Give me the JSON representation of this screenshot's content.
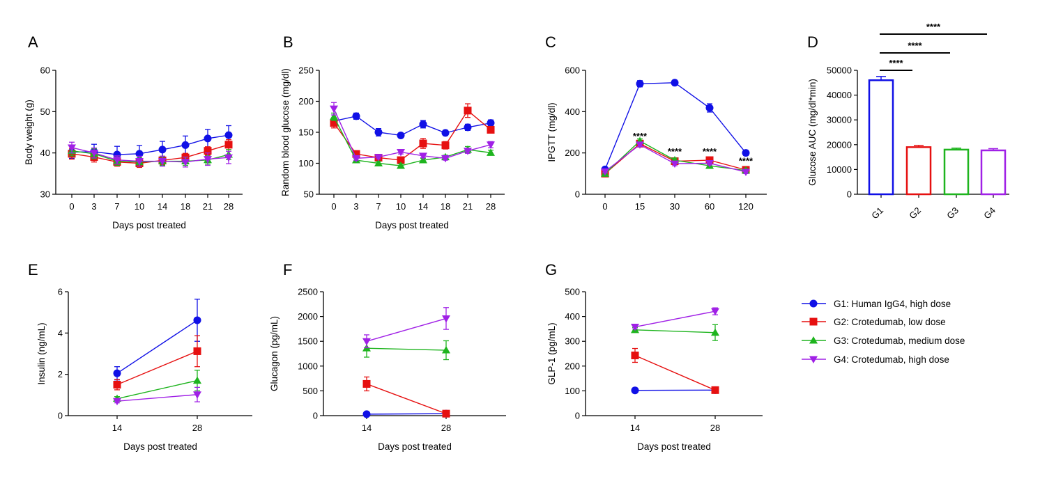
{
  "colors": {
    "G1": "#1010e6",
    "G2": "#e61010",
    "G3": "#1eb41e",
    "G4": "#a020e6"
  },
  "legend": [
    {
      "id": "G1",
      "label": "G1: Human IgG4, high dose",
      "marker": "circle"
    },
    {
      "id": "G2",
      "label": "G2: Crotedumab, low dose",
      "marker": "square"
    },
    {
      "id": "G3",
      "label": "G3: Crotedumab, medium dose",
      "marker": "triangle"
    },
    {
      "id": "G4",
      "label": "G4: Crotedumab, high dose",
      "marker": "triangle-down"
    }
  ],
  "chart_data": [
    {
      "panel": "A",
      "type": "line",
      "xlabel": "Days post treated",
      "ylabel": "Body weight (g)",
      "categories": [
        "0",
        "3",
        "7",
        "10",
        "14",
        "18",
        "21",
        "28"
      ],
      "ylim": [
        30,
        60
      ],
      "yticks": [
        30,
        40,
        50,
        60
      ],
      "series": [
        {
          "id": "G1",
          "values": [
            40.2,
            40.3,
            39.6,
            39.8,
            40.8,
            41.9,
            43.5,
            44.3
          ],
          "err": [
            1.5,
            1.8,
            2.0,
            2.0,
            2.0,
            2.2,
            2.2,
            2.3
          ]
        },
        {
          "id": "G2",
          "values": [
            39.8,
            39.0,
            37.8,
            37.5,
            38.2,
            38.9,
            40.5,
            42.0
          ],
          "err": [
            1.3,
            1.2,
            1.0,
            1.0,
            1.0,
            1.0,
            1.0,
            1.2
          ]
        },
        {
          "id": "G3",
          "values": [
            40.5,
            39.8,
            38.0,
            37.8,
            38.0,
            38.0,
            38.3,
            39.6
          ],
          "err": [
            1.2,
            1.2,
            1.0,
            1.0,
            1.0,
            1.0,
            1.0,
            1.2
          ]
        },
        {
          "id": "G4",
          "values": [
            41.3,
            40.0,
            38.3,
            38.0,
            38.0,
            37.8,
            38.5,
            38.9
          ],
          "err": [
            1.3,
            1.2,
            1.0,
            1.2,
            1.2,
            1.2,
            1.5,
            1.5
          ]
        }
      ]
    },
    {
      "panel": "B",
      "type": "line",
      "xlabel": "Days post treated",
      "ylabel": "Random blood glucose (mg/dl)",
      "categories": [
        "0",
        "3",
        "7",
        "10",
        "14",
        "18",
        "21",
        "28"
      ],
      "ylim": [
        50,
        250
      ],
      "yticks": [
        50,
        100,
        150,
        200,
        250
      ],
      "series": [
        {
          "id": "G1",
          "values": [
            168,
            176,
            150,
            145,
            163,
            149,
            158,
            165
          ],
          "err": [
            5,
            5,
            6,
            3,
            6,
            4,
            5,
            5
          ]
        },
        {
          "id": "G2",
          "values": [
            165,
            115,
            109,
            105,
            132,
            129,
            185,
            154
          ],
          "err": [
            8,
            3,
            3,
            4,
            8,
            6,
            11,
            5
          ]
        },
        {
          "id": "G3",
          "values": [
            175,
            105,
            100,
            96,
            105,
            110,
            122,
            117
          ],
          "err": [
            6,
            3,
            3,
            3,
            3,
            3,
            5,
            4
          ]
        },
        {
          "id": "G4",
          "values": [
            188,
            108,
            110,
            118,
            112,
            108,
            120,
            130
          ],
          "err": [
            10,
            3,
            3,
            3,
            3,
            3,
            4,
            5
          ]
        }
      ]
    },
    {
      "panel": "C",
      "type": "line",
      "xlabel": "",
      "ylabel": "IPGTT (mg/dl)",
      "categories": [
        "0",
        "15",
        "30",
        "60",
        "120"
      ],
      "ylim": [
        0,
        600
      ],
      "yticks": [
        0,
        200,
        400,
        600
      ],
      "annotations": [
        {
          "x": "15",
          "y": 270,
          "text": "****"
        },
        {
          "x": "30",
          "y": 195,
          "text": "****"
        },
        {
          "x": "60",
          "y": 195,
          "text": "****"
        },
        {
          "x": "120",
          "y": 150,
          "text": "****"
        }
      ],
      "series": [
        {
          "id": "G1",
          "values": [
            120,
            535,
            540,
            418,
            200
          ],
          "err": [
            8,
            15,
            10,
            20,
            12
          ]
        },
        {
          "id": "G2",
          "values": [
            100,
            245,
            160,
            165,
            118
          ],
          "err": [
            6,
            10,
            12,
            8,
            8
          ]
        },
        {
          "id": "G3",
          "values": [
            100,
            258,
            165,
            138,
            115
          ],
          "err": [
            6,
            10,
            10,
            8,
            8
          ]
        },
        {
          "id": "G4",
          "values": [
            110,
            240,
            148,
            150,
            108
          ],
          "err": [
            6,
            10,
            10,
            8,
            8
          ]
        }
      ]
    },
    {
      "panel": "D",
      "type": "bar",
      "xlabel": "",
      "ylabel": "Glucose AUC (mg/dl*min)",
      "categories": [
        "G1",
        "G2",
        "G3",
        "G4"
      ],
      "ylim": [
        0,
        50000
      ],
      "yticks": [
        0,
        10000,
        20000,
        30000,
        40000,
        50000
      ],
      "values": [
        46000,
        19000,
        18000,
        17700
      ],
      "err": [
        1500,
        700,
        600,
        700
      ],
      "significance": [
        {
          "from": "G1",
          "to": "G2",
          "text": "****"
        },
        {
          "from": "G1",
          "to": "G3",
          "text": "****"
        },
        {
          "from": "G1",
          "to": "G4",
          "text": "****"
        }
      ]
    },
    {
      "panel": "E",
      "type": "line",
      "xlabel": "Days post treated",
      "ylabel": "Insulin (ng/mL)",
      "categories": [
        "14",
        "28"
      ],
      "ylim": [
        0,
        6
      ],
      "yticks": [
        0,
        2,
        4,
        6
      ],
      "series": [
        {
          "id": "G1",
          "values": [
            2.05,
            4.62
          ],
          "err": [
            0.32,
            1.02
          ]
        },
        {
          "id": "G2",
          "values": [
            1.5,
            3.12
          ],
          "err": [
            0.25,
            0.75
          ]
        },
        {
          "id": "G3",
          "values": [
            0.82,
            1.7
          ],
          "err": [
            0.1,
            0.5
          ]
        },
        {
          "id": "G4",
          "values": [
            0.7,
            1.02
          ],
          "err": [
            0.08,
            0.35
          ]
        }
      ]
    },
    {
      "panel": "F",
      "type": "line",
      "xlabel": "Days post treated",
      "ylabel": "Glucagon (pg/mL)",
      "categories": [
        "14",
        "28"
      ],
      "ylim": [
        0,
        2500
      ],
      "yticks": [
        0,
        500,
        1000,
        1500,
        2000,
        2500
      ],
      "series": [
        {
          "id": "G1",
          "values": [
            30,
            40
          ],
          "err": [
            10,
            10
          ]
        },
        {
          "id": "G2",
          "values": [
            640,
            40
          ],
          "err": [
            140,
            20
          ]
        },
        {
          "id": "G3",
          "values": [
            1360,
            1320
          ],
          "err": [
            180,
            190
          ]
        },
        {
          "id": "G4",
          "values": [
            1500,
            1960
          ],
          "err": [
            130,
            220
          ]
        }
      ]
    },
    {
      "panel": "G",
      "type": "line",
      "xlabel": "Days post treated",
      "ylabel": "GLP-1 (pg/mL)",
      "categories": [
        "14",
        "28"
      ],
      "ylim": [
        0,
        500
      ],
      "yticks": [
        0,
        100,
        200,
        300,
        400,
        500
      ],
      "series": [
        {
          "id": "G1",
          "values": [
            102,
            103
          ],
          "err": [
            3,
            3
          ]
        },
        {
          "id": "G2",
          "values": [
            243,
            103
          ],
          "err": [
            28,
            5
          ]
        },
        {
          "id": "G3",
          "values": [
            346,
            335
          ],
          "err": [
            10,
            32
          ]
        },
        {
          "id": "G4",
          "values": [
            358,
            421
          ],
          "err": [
            8,
            14
          ]
        }
      ]
    }
  ]
}
